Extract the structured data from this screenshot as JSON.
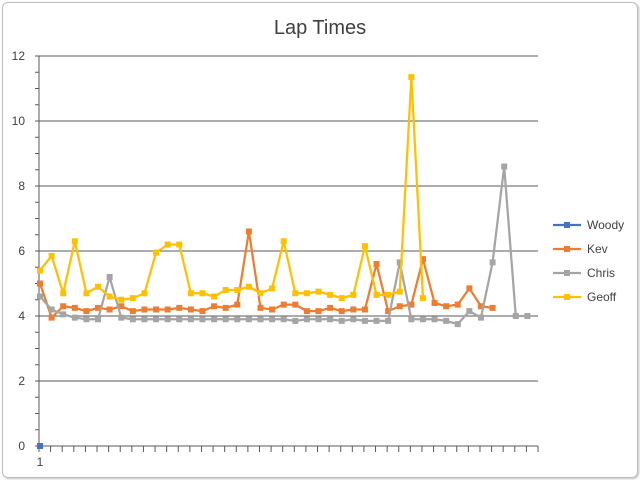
{
  "chart_data": {
    "type": "line",
    "title": "Lap Times",
    "xlabel": "",
    "ylabel": "",
    "ylim": [
      0,
      12
    ],
    "yticks": [
      0,
      2,
      4,
      6,
      8,
      10,
      12
    ],
    "xtick_labels": [
      "1"
    ],
    "grid": true,
    "legend_position": "right",
    "series": [
      {
        "name": "Woody",
        "color": "#4472c4",
        "values": [
          0
        ]
      },
      {
        "name": "Kev",
        "color": "#ed7d31",
        "values": [
          5.0,
          3.95,
          4.3,
          4.25,
          4.15,
          4.25,
          4.2,
          4.3,
          4.15,
          4.2,
          4.2,
          4.2,
          4.25,
          4.2,
          4.15,
          4.3,
          4.25,
          4.35,
          6.6,
          4.25,
          4.2,
          4.35,
          4.35,
          4.15,
          4.15,
          4.25,
          4.15,
          4.2,
          4.2,
          5.6,
          4.15,
          4.3,
          4.35,
          5.75,
          4.4,
          4.3,
          4.35,
          4.85,
          4.3,
          4.25
        ]
      },
      {
        "name": "Chris",
        "color": "#a5a5a5",
        "values": [
          4.6,
          4.2,
          4.05,
          3.95,
          3.9,
          3.9,
          5.2,
          3.95,
          3.9,
          3.9,
          3.9,
          3.9,
          3.9,
          3.9,
          3.9,
          3.9,
          3.9,
          3.9,
          3.9,
          3.9,
          3.9,
          3.9,
          3.85,
          3.9,
          3.9,
          3.9,
          3.85,
          3.9,
          3.85,
          3.85,
          3.85,
          5.65,
          3.9,
          3.9,
          3.9,
          3.85,
          3.75,
          4.15,
          3.95,
          5.65,
          8.6,
          4.0,
          4.0
        ]
      },
      {
        "name": "Geoff",
        "color": "#ffc000",
        "values": [
          5.4,
          5.85,
          4.7,
          6.3,
          4.7,
          4.9,
          4.6,
          4.5,
          4.55,
          4.7,
          5.95,
          6.2,
          6.2,
          4.7,
          4.7,
          4.6,
          4.8,
          4.8,
          4.9,
          4.7,
          4.85,
          6.3,
          4.7,
          4.7,
          4.75,
          4.65,
          4.55,
          4.65,
          6.15,
          4.65,
          4.65,
          4.75,
          11.35,
          4.55
        ]
      }
    ]
  }
}
